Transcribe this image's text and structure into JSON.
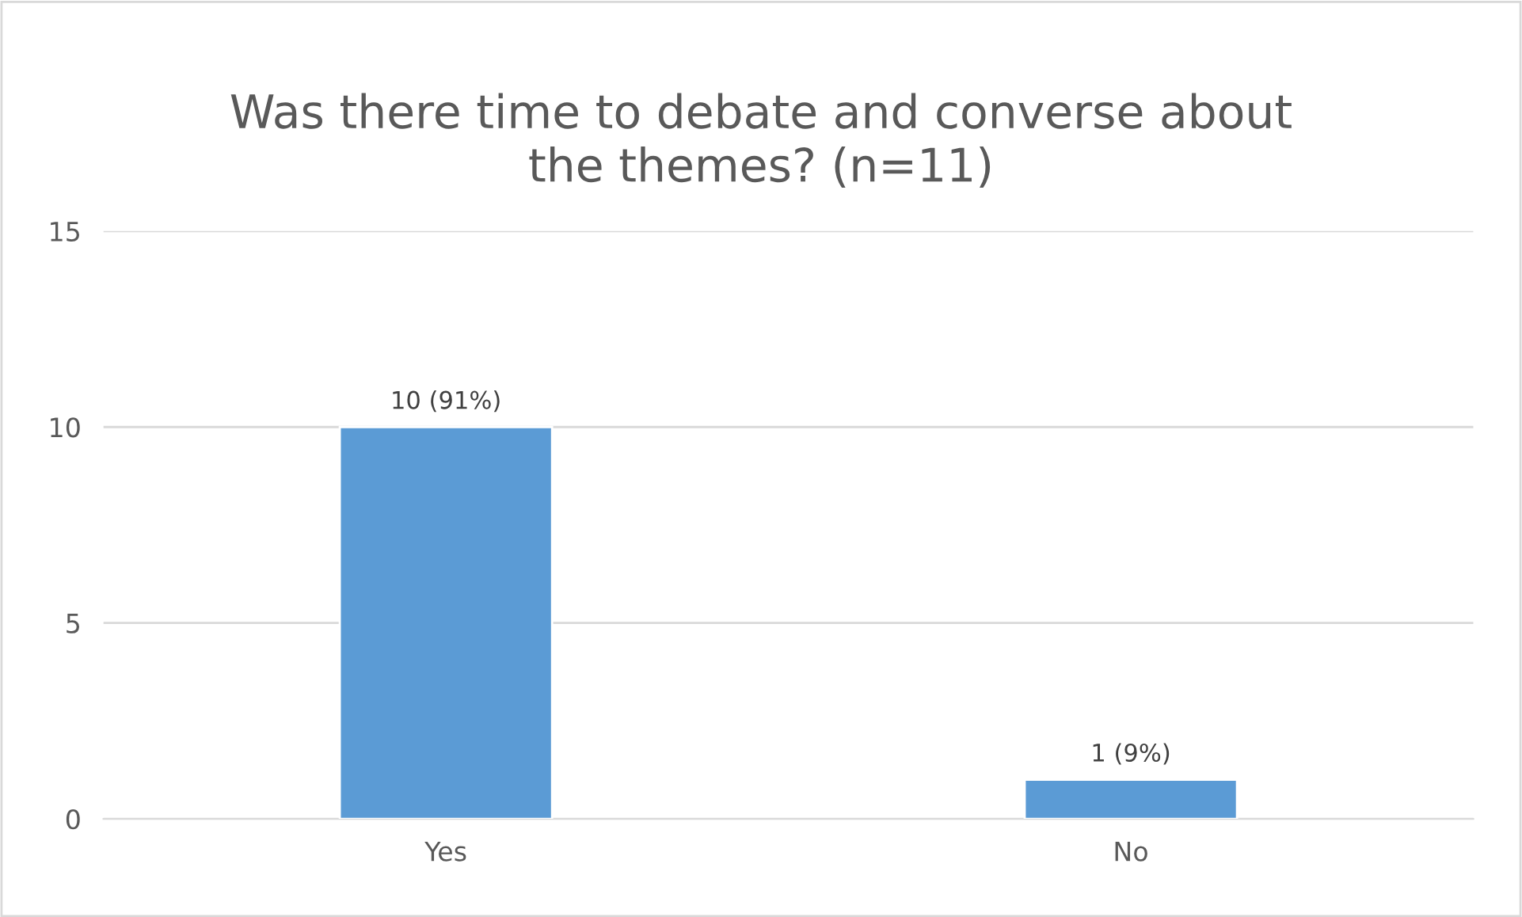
{
  "chart_data": {
    "type": "bar",
    "title": "Was there time to debate and converse about\nthe themes? (n=11)",
    "categories": [
      "Yes",
      "No"
    ],
    "values": [
      10,
      1
    ],
    "color": "#5b9bd5",
    "value_labels": [
      "10 (91%)",
      "1 (9%)"
    ],
    "ylim": [
      0,
      15
    ],
    "yticks": [
      0,
      5,
      10,
      15
    ],
    "grid": "y",
    "legend": false
  }
}
